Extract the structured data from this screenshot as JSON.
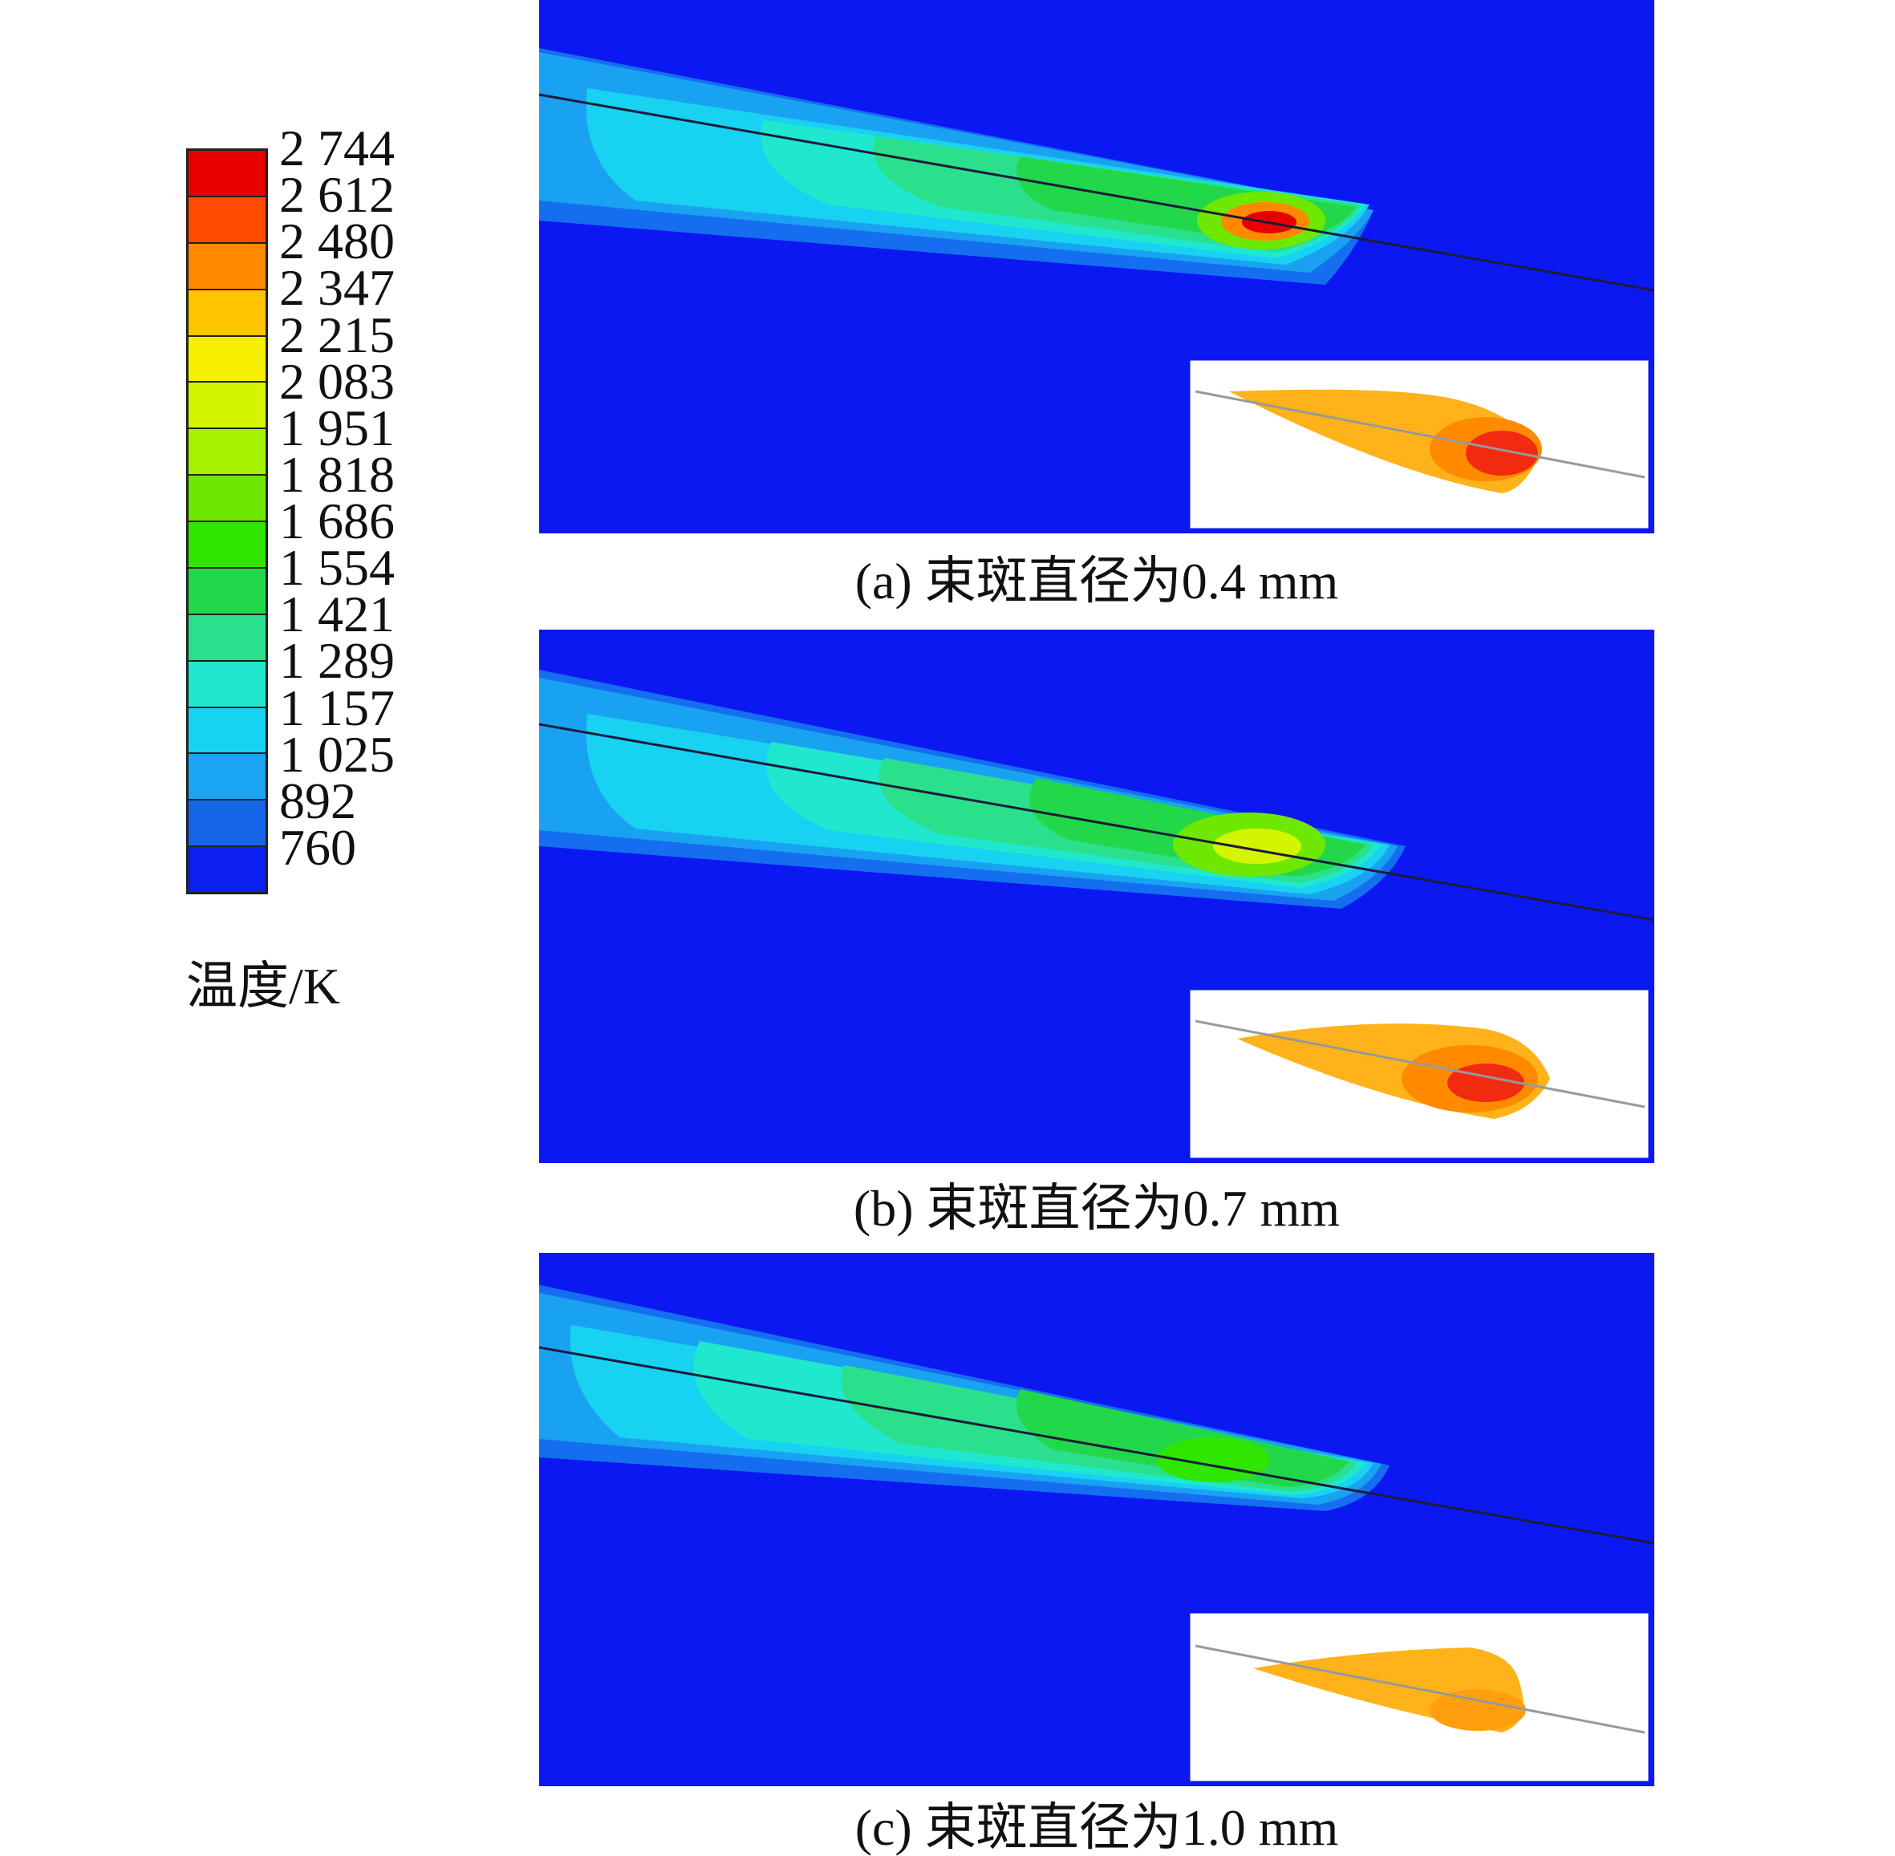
{
  "legend": {
    "unit_label": "温度/K",
    "levels": [
      "2 744",
      "2 612",
      "2 480",
      "2 347",
      "2 215",
      "2 083",
      "1 951",
      "1 818",
      "1 686",
      "1 554",
      "1 421",
      "1 289",
      "1 157",
      "1 025",
      "892",
      "760"
    ],
    "swatch_colors": [
      "#e60000",
      "#ff4a00",
      "#ff8a00",
      "#ffc400",
      "#f4f000",
      "#d4f500",
      "#a6f200",
      "#6fe800",
      "#2ee600",
      "#22d84a",
      "#2be08c",
      "#20e8cf",
      "#18d2f2",
      "#1aa4f2",
      "#1565e8",
      "#0b1ff0"
    ]
  },
  "panels": [
    {
      "caption": "(a) 束斑直径为0.4 mm"
    },
    {
      "caption": "(b) 束斑直径为0.7 mm"
    },
    {
      "caption": "(c) 束斑直径为1.0 mm"
    }
  ],
  "colors": {
    "background_field": "#0b18f2",
    "inset_background": "#ffffff",
    "inset_plume_orange": "#ffb21a",
    "inset_hot_red": "#f22a10"
  }
}
